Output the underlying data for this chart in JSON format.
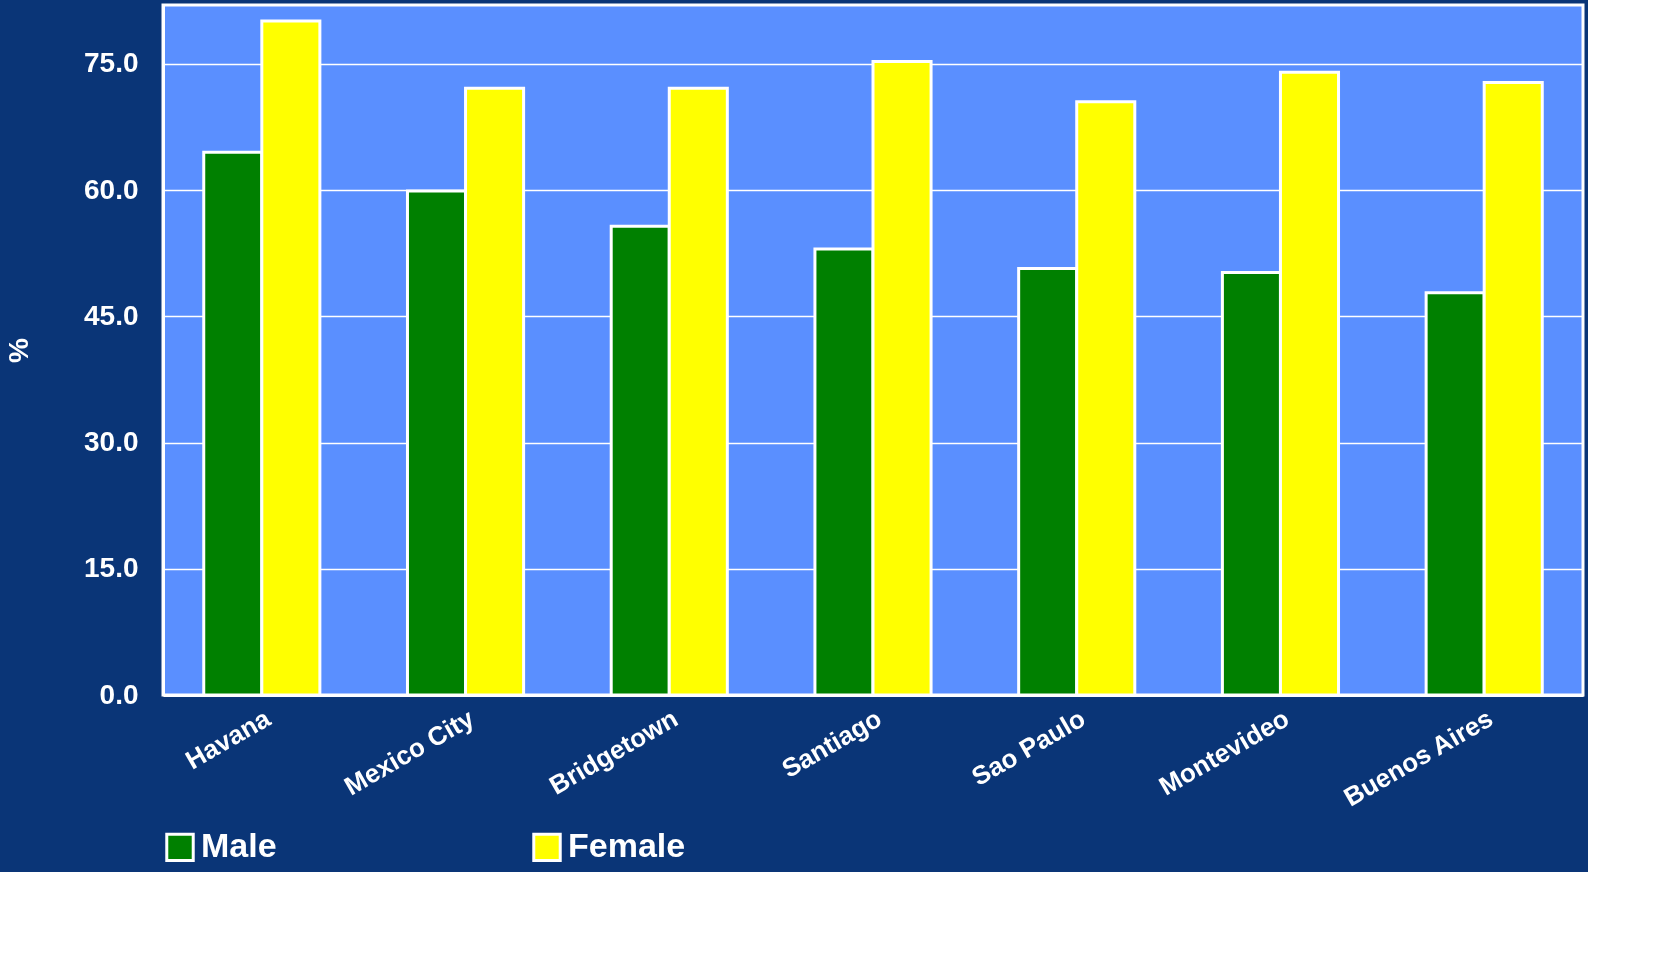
{
  "chart_data": {
    "type": "bar",
    "ylabel": "%",
    "categories": [
      "Havana",
      "Mexico City",
      "Bridgetown",
      "Santiago",
      "Sao Paulo",
      "Montevideo",
      "Buenos Aires"
    ],
    "series": [
      {
        "name": "Male",
        "color": "#008000",
        "values": [
          64.5,
          59.9,
          55.7,
          53.0,
          50.7,
          50.2,
          47.8
        ]
      },
      {
        "name": "Female",
        "color": "#ffff00",
        "values": [
          80.1,
          72.1,
          72.1,
          75.3,
          70.5,
          74.0,
          72.8
        ]
      }
    ],
    "ylim": [
      0,
      82
    ],
    "yticks": [
      {
        "value": 0,
        "label": "0.0"
      },
      {
        "value": 15,
        "label": "15.0"
      },
      {
        "value": 30,
        "label": "30.0"
      },
      {
        "value": 45,
        "label": "45.0"
      },
      {
        "value": 60,
        "label": "60.0"
      },
      {
        "value": 75,
        "label": "75.0"
      }
    ],
    "grid": "y",
    "legend": "bottom"
  }
}
